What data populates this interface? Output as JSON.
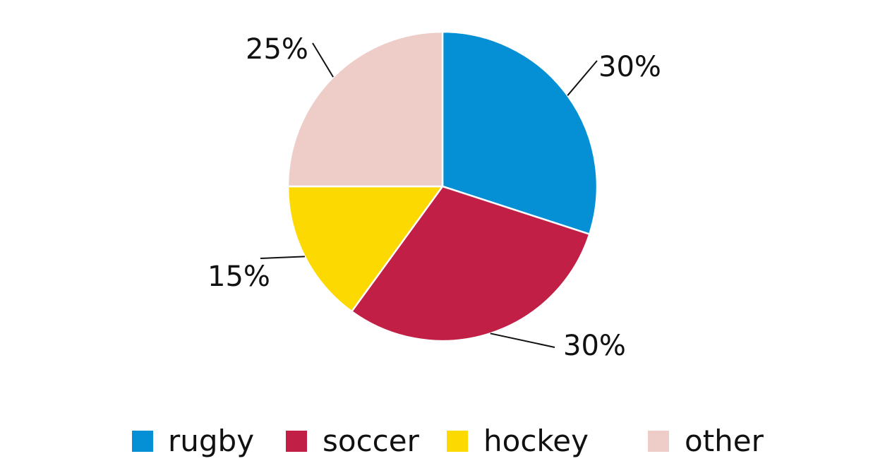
{
  "chart_data": {
    "type": "pie",
    "title": "",
    "start_angle_deg": 0,
    "direction": "clockwise",
    "slices": [
      {
        "label": "rugby",
        "value": 30,
        "display": "30%",
        "color": "#0590d6"
      },
      {
        "label": "soccer",
        "value": 30,
        "display": "30%",
        "color": "#c11f45"
      },
      {
        "label": "hockey",
        "value": 15,
        "display": "15%",
        "color": "#fcd900"
      },
      {
        "label": "other",
        "value": 25,
        "display": "25%",
        "color": "#eeccc7"
      }
    ],
    "legend": {
      "placement": "bottom",
      "entries": [
        "rugby",
        "soccer",
        "hockey",
        "other"
      ]
    },
    "slice_border_color": "#ffffff"
  }
}
